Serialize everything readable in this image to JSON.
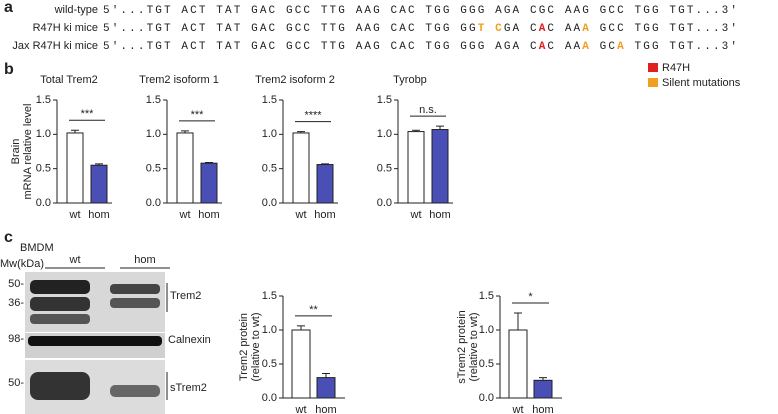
{
  "panel_labels": [
    "a",
    "b",
    "c"
  ],
  "sequences": [
    {
      "label": "wild-type",
      "segments": [
        {
          "text": "5'...TGT ACT TAT GAC GCC TTG AAG CAC TGG GGG AGA CGC AAG GCC TGG TGT...3'"
        }
      ]
    },
    {
      "label": "R47H ki mice",
      "segments": [
        {
          "text": "5'...TGT ACT TAT GAC GCC TTG AAG CAC TGG GG"
        },
        {
          "text": "T",
          "color": "#f0a020"
        },
        {
          "text": " "
        },
        {
          "text": "C",
          "color": "#f0a020"
        },
        {
          "text": "GA C"
        },
        {
          "text": "A",
          "color": "#e02020"
        },
        {
          "text": "C AA"
        },
        {
          "text": "A",
          "color": "#f0a020"
        },
        {
          "text": " GCC TGG TGT...3'"
        }
      ]
    },
    {
      "label": "Jax R47H ki mice",
      "segments": [
        {
          "text": "5'...TGT ACT TAT GAC GCC TTG AAG CAC TGG GGG AGA C"
        },
        {
          "text": "A",
          "color": "#e02020"
        },
        {
          "text": "C AA"
        },
        {
          "text": "A",
          "color": "#f0a020"
        },
        {
          "text": " GC"
        },
        {
          "text": "A",
          "color": "#f0a020"
        },
        {
          "text": " TGG TGT...3'"
        }
      ]
    }
  ],
  "sequence_legend": [
    {
      "name": "R47H",
      "color": "#e02020"
    },
    {
      "name": "Silent mutations",
      "color": "#f0a020"
    }
  ],
  "blot": {
    "title": "BMDM",
    "mw_label": "Mw(kDa)",
    "groups": [
      "wt",
      "hom"
    ],
    "markers": [
      "50-",
      "36-",
      "98-",
      "50-"
    ],
    "bands": [
      "Trem2",
      "Calnexin",
      "sTrem2"
    ]
  },
  "chart_data": [
    {
      "type": "bar",
      "title": "Total Trem2",
      "ylabel": [
        "Brain",
        "mRNA relative level"
      ],
      "categories": [
        "wt",
        "hom"
      ],
      "values": [
        1.02,
        0.55
      ],
      "errors": [
        0.04,
        0.02
      ],
      "colors": [
        "#ffffff",
        "#4a4fb5"
      ],
      "annotation": "***",
      "ylim": [
        0,
        1.5
      ],
      "yticks": [
        {
          "value": 0,
          "label": "0.0"
        },
        0.5,
        {
          "value": 1,
          "label": "1.0"
        },
        1.5
      ]
    },
    {
      "type": "bar",
      "title": "Trem2 isoform 1",
      "categories": [
        "wt",
        "hom"
      ],
      "values": [
        1.02,
        0.58
      ],
      "errors": [
        0.03,
        0.01
      ],
      "colors": [
        "#ffffff",
        "#4a4fb5"
      ],
      "annotation": "***",
      "ylim": [
        0,
        1.5
      ],
      "yticks": [
        {
          "value": 0,
          "label": "0.0"
        },
        0.5,
        {
          "value": 1,
          "label": "1.0"
        },
        1.5
      ]
    },
    {
      "type": "bar",
      "title": "Trem2 isoform 2",
      "categories": [
        "wt",
        "hom"
      ],
      "values": [
        1.02,
        0.56
      ],
      "errors": [
        0.02,
        0.01
      ],
      "colors": [
        "#ffffff",
        "#4a4fb5"
      ],
      "annotation": "****",
      "ylim": [
        0,
        1.5
      ],
      "yticks": [
        {
          "value": 0,
          "label": "0.0"
        },
        0.5,
        {
          "value": 1,
          "label": "1.0"
        },
        1.5
      ]
    },
    {
      "type": "bar",
      "title": "Tyrobp",
      "categories": [
        "wt",
        "hom"
      ],
      "values": [
        1.04,
        1.07
      ],
      "errors": [
        0.02,
        0.05
      ],
      "colors": [
        "#ffffff",
        "#4a4fb5"
      ],
      "annotation": "n.s.",
      "ylim": [
        0,
        1.5
      ],
      "yticks": [
        {
          "value": 0,
          "label": "0.0"
        },
        0.5,
        {
          "value": 1,
          "label": "1.0"
        },
        1.5
      ]
    },
    {
      "type": "bar",
      "ylabel": [
        "Trem2 protein",
        "(relative to wt)"
      ],
      "categories": [
        "wt",
        "hom"
      ],
      "values": [
        1.0,
        0.3
      ],
      "errors": [
        0.06,
        0.06
      ],
      "colors": [
        "#ffffff",
        "#4a4fb5"
      ],
      "annotation": "**",
      "ylim": [
        0,
        1.5
      ],
      "yticks": [
        {
          "value": 0,
          "label": "0.0"
        },
        0.5,
        {
          "value": 1,
          "label": "1.0"
        },
        1.5
      ]
    },
    {
      "type": "bar",
      "ylabel": [
        "sTrem2 protein",
        "(relative to wt)"
      ],
      "categories": [
        "wt",
        "hom"
      ],
      "values": [
        1.0,
        0.26
      ],
      "errors": [
        0.25,
        0.04
      ],
      "colors": [
        "#ffffff",
        "#4a4fb5"
      ],
      "annotation": "*",
      "ylim": [
        0,
        1.5
      ],
      "yticks": [
        {
          "value": 0,
          "label": "0.0"
        },
        0.5,
        {
          "value": 1,
          "label": "1.0"
        },
        1.5
      ]
    }
  ]
}
